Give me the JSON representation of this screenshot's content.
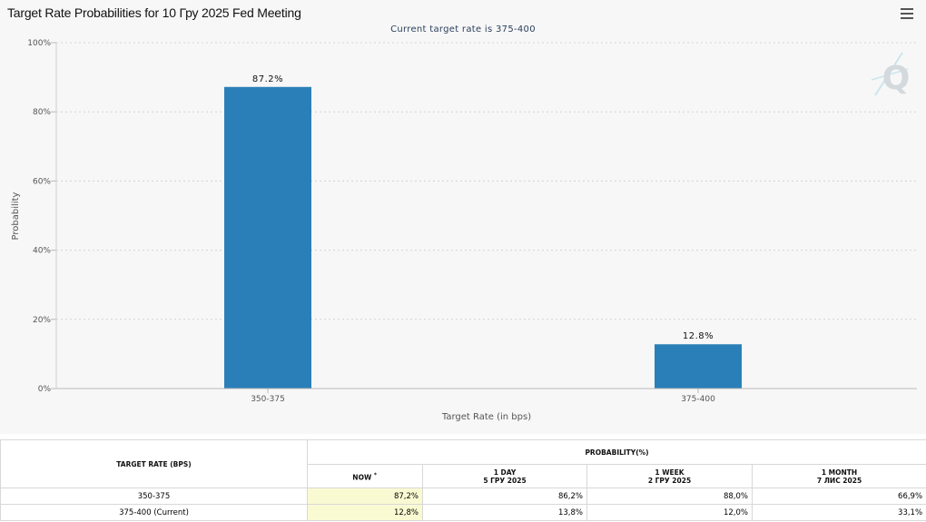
{
  "header": {
    "title": "Target Rate Probabilities for 10 Гру 2025 Fed Meeting",
    "menu_icon": "hamburger-menu-icon",
    "watermark_icon": "q-logo-icon"
  },
  "chart_data": {
    "type": "bar",
    "title": "Target Rate Probabilities for 10 Гру 2025 Fed Meeting",
    "subtitle": "Current target rate is 375-400",
    "categories": [
      "350-375",
      "375-400"
    ],
    "values": [
      87.2,
      12.8
    ],
    "data_labels": [
      "87.2%",
      "12.8%"
    ],
    "xlabel": "Target Rate (in bps)",
    "ylabel": "Probability",
    "ylim": [
      0,
      100
    ],
    "yticks": [
      "0%",
      "20%",
      "40%",
      "60%",
      "80%",
      "100%"
    ],
    "ytick_values": [
      0,
      20,
      40,
      60,
      80,
      100
    ],
    "grid": true,
    "bar_color": "#2a7fb8"
  },
  "table": {
    "col_target_rate": "TARGET RATE (BPS)",
    "col_probability": "PROBABILITY(%)",
    "sub_now": "NOW",
    "sub_now_mark": "*",
    "sub_1day": "1 DAY",
    "sub_1day_date": "5 ГРУ 2025",
    "sub_1week": "1 WEEK",
    "sub_1week_date": "2 ГРУ 2025",
    "sub_1month": "1 MONTH",
    "sub_1month_date": "7 ЛИС 2025",
    "rows": [
      {
        "rate": "350-375",
        "now": "87,2%",
        "day": "86,2%",
        "week": "88,0%",
        "month": "66,9%"
      },
      {
        "rate": "375-400 (Current)",
        "now": "12,8%",
        "day": "13,8%",
        "week": "12,0%",
        "month": "33,1%"
      }
    ]
  }
}
